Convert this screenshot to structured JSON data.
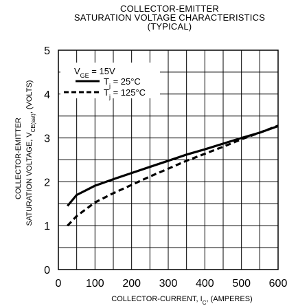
{
  "chart_data": {
    "type": "line",
    "title_lines": [
      "COLLECTOR-EMITTER",
      "SATURATION VOLTAGE CHARACTERISTICS",
      "(TYPICAL)"
    ],
    "xlabel": "COLLECTOR-CURRENT, I",
    "xlabel_sub": "C",
    "xlabel_suffix": ", (AMPERES)",
    "ylabel_line1": "COLLECTOR-EMITTER",
    "ylabel_line2": "SATURATION VOLTAGE, V",
    "ylabel_sub": "CE(sat)",
    "ylabel_suffix": ", (VOLTS)",
    "xlim": [
      0,
      600
    ],
    "ylim": [
      0,
      5
    ],
    "x_ticks": [
      0,
      100,
      200,
      300,
      400,
      500,
      600
    ],
    "y_ticks": [
      0,
      1,
      2,
      3,
      4,
      5
    ],
    "x_tick_labels": [
      "0",
      "100",
      "200",
      "300",
      "400",
      "500",
      "600"
    ],
    "y_tick_labels": [
      "0",
      "1",
      "2",
      "3",
      "4",
      "5"
    ],
    "grid": true,
    "legend": {
      "header": "V",
      "header_sub": "GE",
      "header_suffix": " = 15V",
      "placement": "top-left"
    },
    "series": [
      {
        "name": "T",
        "name_sub": "j",
        "name_suffix": " = 25°C",
        "style": "solid",
        "x": [
          25,
          50,
          100,
          150,
          200,
          250,
          300,
          350,
          400,
          450,
          500,
          550,
          600
        ],
        "y": [
          1.45,
          1.7,
          1.91,
          2.06,
          2.2,
          2.34,
          2.48,
          2.62,
          2.74,
          2.87,
          3.0,
          3.12,
          3.27
        ]
      },
      {
        "name": "T",
        "name_sub": "j",
        "name_suffix": " = 125°C",
        "style": "dashed",
        "x": [
          25,
          50,
          100,
          150,
          200,
          250,
          300,
          350,
          400,
          450,
          500,
          550,
          600
        ],
        "y": [
          1.0,
          1.22,
          1.53,
          1.74,
          1.93,
          2.12,
          2.3,
          2.48,
          2.64,
          2.8,
          2.97,
          3.12,
          3.28
        ]
      }
    ]
  }
}
